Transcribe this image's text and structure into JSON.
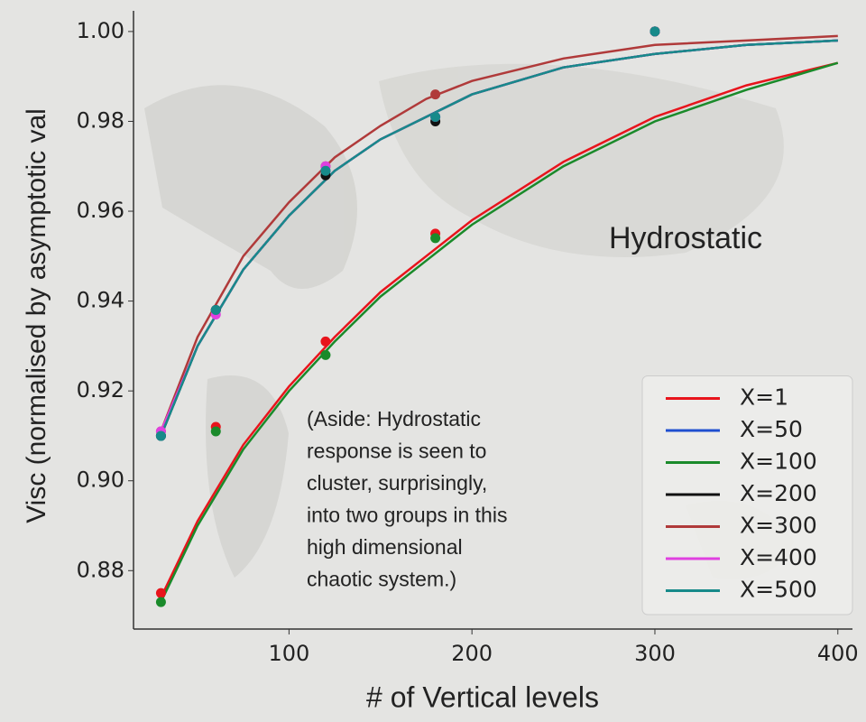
{
  "chart_data": {
    "type": "scatter",
    "ylabel": "Visc (normalised by asymptotic val",
    "xlabel": "# of Vertical levels",
    "annotation": "Hydrostatic",
    "aside": [
      "(Aside: Hydrostatic",
      "response is seen to",
      "cluster, surprisingly,",
      "into two groups in this",
      "high dimensional",
      "chaotic system.)"
    ],
    "xlim": [
      15,
      408
    ],
    "ylim": [
      0.867,
      1.0046
    ],
    "xticks": [
      100,
      200,
      300,
      400
    ],
    "yticks": [
      0.88,
      {
        "value": 0.9,
        "label": "0.90"
      },
      0.92,
      0.94,
      0.96,
      0.98,
      {
        "value": 1.0,
        "label": "1.00"
      }
    ],
    "x": [
      30,
      60,
      120,
      180,
      300
    ],
    "fit_x": [
      30,
      50,
      75,
      100,
      125,
      150,
      175,
      200,
      250,
      300,
      350,
      400
    ],
    "legend": "lower right",
    "series": [
      {
        "name": "X=1",
        "color": "#e8141c",
        "values": [
          0.875,
          0.912,
          0.931,
          0.955,
          1.0
        ],
        "fit_values": [
          0.874,
          0.891,
          0.908,
          0.921,
          0.932,
          0.942,
          0.95,
          0.958,
          0.971,
          0.981,
          0.988,
          0.993
        ]
      },
      {
        "name": "X=50",
        "color": "#1f4fd0",
        "values": [
          0.91,
          0.938,
          0.969,
          0.981,
          1.0
        ],
        "fit_values": [
          0.91,
          0.93,
          0.947,
          0.959,
          0.969,
          0.976,
          0.981,
          0.986,
          0.992,
          0.995,
          0.997,
          0.998
        ]
      },
      {
        "name": "X=100",
        "color": "#1a8a2a",
        "values": [
          0.873,
          0.911,
          0.928,
          0.954,
          1.0
        ],
        "fit_values": [
          0.873,
          0.89,
          0.907,
          0.92,
          0.931,
          0.941,
          0.949,
          0.957,
          0.97,
          0.98,
          0.987,
          0.993
        ]
      },
      {
        "name": "X=200",
        "color": "#111111",
        "values": [
          0.91,
          0.938,
          0.968,
          0.98,
          1.0
        ],
        "fit_values": [
          0.91,
          0.93,
          0.947,
          0.959,
          0.969,
          0.976,
          0.981,
          0.986,
          0.992,
          0.995,
          0.997,
          0.998
        ]
      },
      {
        "name": "X=300",
        "color": "#b03a3a",
        "values": [
          0.911,
          0.938,
          0.97,
          0.986,
          1.0
        ],
        "fit_values": [
          0.911,
          0.932,
          0.95,
          0.962,
          0.972,
          0.979,
          0.985,
          0.989,
          0.994,
          0.997,
          0.998,
          0.999
        ]
      },
      {
        "name": "X=400",
        "color": "#e040e0",
        "values": [
          0.911,
          0.937,
          0.97,
          0.981,
          1.0
        ],
        "fit_values": [
          0.911,
          0.93,
          0.947,
          0.959,
          0.969,
          0.976,
          0.981,
          0.986,
          0.992,
          0.995,
          0.997,
          0.998
        ]
      },
      {
        "name": "X=500",
        "color": "#178a8a",
        "values": [
          0.91,
          0.938,
          0.969,
          0.981,
          1.0
        ],
        "fit_values": [
          0.91,
          0.93,
          0.947,
          0.959,
          0.969,
          0.976,
          0.981,
          0.986,
          0.992,
          0.995,
          0.997,
          0.998
        ]
      }
    ]
  }
}
